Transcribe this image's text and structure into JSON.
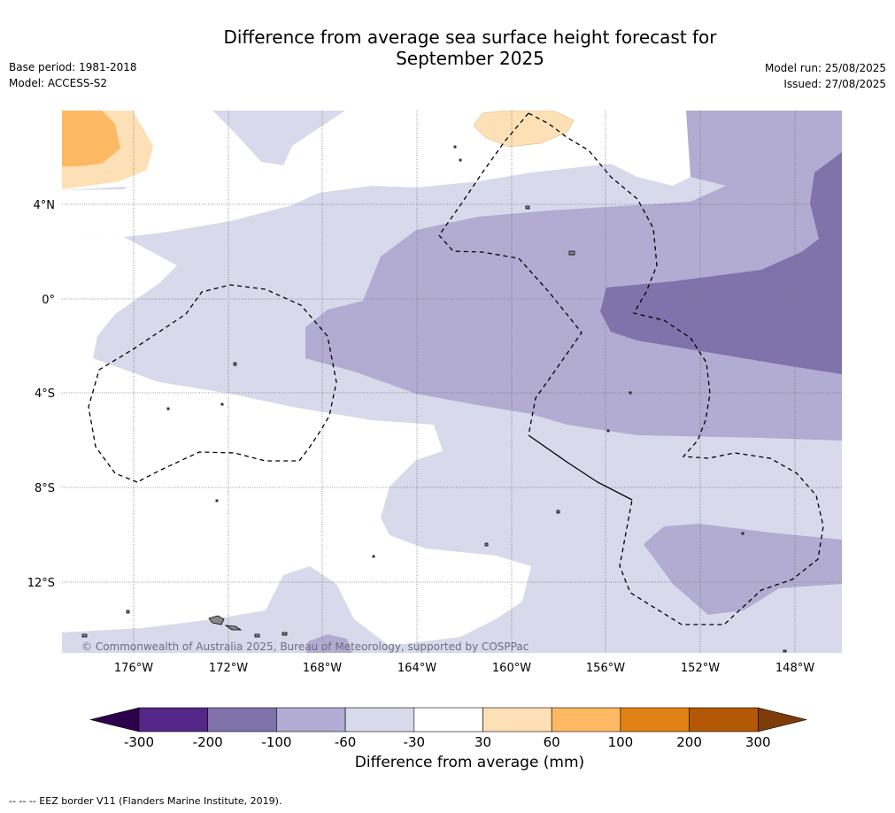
{
  "header": {
    "title_line1": "Difference from average sea surface height forecast for",
    "title_line2": "September 2025",
    "base_period": "Base period: 1981-2018",
    "model": "Model: ACCESS-S2",
    "model_run": "Model run: 25/08/2025",
    "issued": "Issued: 27/08/2025"
  },
  "map": {
    "lat_labels": [
      "4°N",
      "0°",
      "4°S",
      "8°S",
      "12°S"
    ],
    "lon_labels": [
      "176°W",
      "172°W",
      "168°W",
      "164°W",
      "160°W",
      "156°W",
      "152°W",
      "148°W"
    ],
    "copyright": "© Commonwealth of Australia 2025, Bureau of Meteorology, supported by COSPPac"
  },
  "colorbar": {
    "ticks": [
      "-300",
      "-200",
      "-100",
      "-60",
      "-30",
      "30",
      "60",
      "100",
      "200",
      "300"
    ],
    "colors": [
      "#542788",
      "#8073ac",
      "#b2abd2",
      "#d8daeb",
      "#ffffff",
      "#fee0b6",
      "#fdb863",
      "#e08214",
      "#b35806"
    ],
    "extend_low_color": "#2d004b",
    "extend_high_color": "#7f3b08",
    "label": "Difference from average (mm)"
  },
  "footer": {
    "eez_note": "--  --  -- EEZ border V11 (Flanders Marine Institute, 2019)."
  }
}
